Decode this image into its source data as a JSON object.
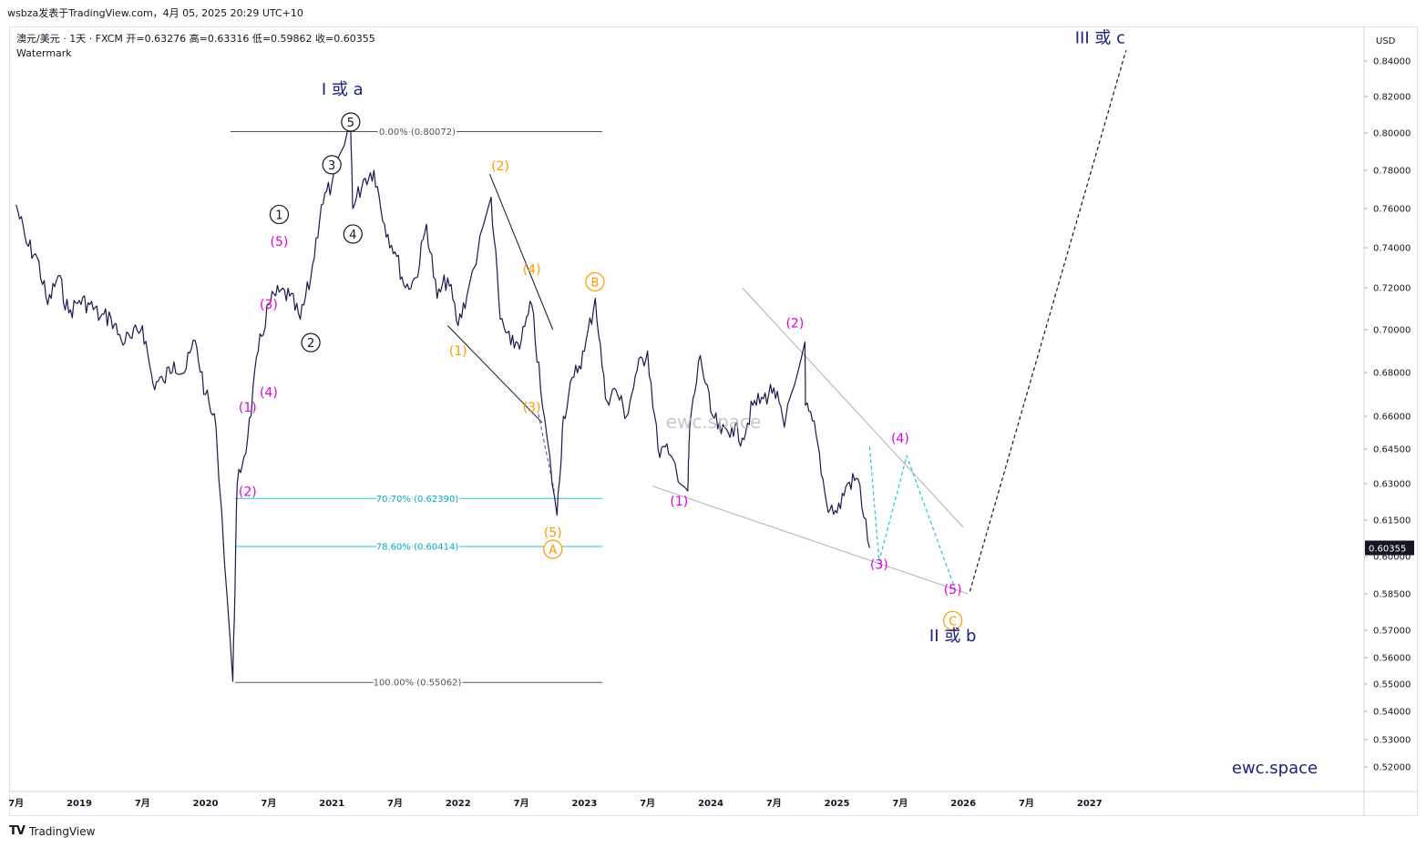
{
  "header": {
    "title": "wsbza发表于TradingView.com，4月 05, 2025 20:29 UTC+10"
  },
  "legend": {
    "line1": "澳元/美元 · 1天 · FXCM  开=0.63276  高=0.63316  低=0.59862  收=0.60355",
    "line2": "Watermark"
  },
  "footer": {
    "logo": "TV",
    "brand": "TradingView"
  },
  "chart_data": {
    "type": "line",
    "title": "澳元/美元 · 1天 · FXCM",
    "currency": "USD",
    "last_price": "0.60355",
    "ohlc": {
      "open": 0.63276,
      "high": 0.63316,
      "low": 0.59862,
      "close": 0.60355
    },
    "y_ticks": [
      "0.84000",
      "0.82000",
      "0.80000",
      "0.78000",
      "0.76000",
      "0.74000",
      "0.72000",
      "0.70000",
      "0.68000",
      "0.66000",
      "0.64500",
      "0.63000",
      "0.61500",
      "0.60000",
      "0.58500",
      "0.57000",
      "0.56000",
      "0.55000",
      "0.54000",
      "0.53000",
      "0.52000"
    ],
    "x_ticks": [
      "7月",
      "2019",
      "7月",
      "2020",
      "7月",
      "2021",
      "7月",
      "2022",
      "7月",
      "2023",
      "7月",
      "2024",
      "7月",
      "2025",
      "7月",
      "2026",
      "7月",
      "2027"
    ],
    "price_series": [
      {
        "x": "2018-07",
        "y": 0.762
      },
      {
        "x": "2018-08",
        "y": 0.742
      },
      {
        "x": "2018-09",
        "y": 0.735
      },
      {
        "x": "2018-10",
        "y": 0.712
      },
      {
        "x": "2018-11",
        "y": 0.726
      },
      {
        "x": "2018-12",
        "y": 0.708
      },
      {
        "x": "2019-01",
        "y": 0.714
      },
      {
        "x": "2019-02",
        "y": 0.712
      },
      {
        "x": "2019-03",
        "y": 0.706
      },
      {
        "x": "2019-04",
        "y": 0.706
      },
      {
        "x": "2019-05",
        "y": 0.695
      },
      {
        "x": "2019-06",
        "y": 0.696
      },
      {
        "x": "2019-07",
        "y": 0.702
      },
      {
        "x": "2019-08",
        "y": 0.675
      },
      {
        "x": "2019-09",
        "y": 0.676
      },
      {
        "x": "2019-10",
        "y": 0.685
      },
      {
        "x": "2019-11",
        "y": 0.68
      },
      {
        "x": "2019-12",
        "y": 0.695
      },
      {
        "x": "2020-01",
        "y": 0.67
      },
      {
        "x": "2020-02",
        "y": 0.655
      },
      {
        "x": "2020-03-19",
        "y": 0.551
      },
      {
        "x": "2020-04",
        "y": 0.63
      },
      {
        "x": "2020-05",
        "y": 0.65
      },
      {
        "x": "2020-06",
        "y": 0.69
      },
      {
        "x": "2020-07",
        "y": 0.712
      },
      {
        "x": "2020-08",
        "y": 0.718
      },
      {
        "x": "2020-09",
        "y": 0.716
      },
      {
        "x": "2020-10",
        "y": 0.705
      },
      {
        "x": "2020-11",
        "y": 0.725
      },
      {
        "x": "2020-12",
        "y": 0.762
      },
      {
        "x": "2021-01",
        "y": 0.773
      },
      {
        "x": "2021-02-25",
        "y": 0.8007
      },
      {
        "x": "2021-03",
        "y": 0.76
      },
      {
        "x": "2021-04",
        "y": 0.775
      },
      {
        "x": "2021-05",
        "y": 0.78
      },
      {
        "x": "2021-06",
        "y": 0.752
      },
      {
        "x": "2021-07",
        "y": 0.738
      },
      {
        "x": "2021-08",
        "y": 0.72
      },
      {
        "x": "2021-09",
        "y": 0.725
      },
      {
        "x": "2021-10",
        "y": 0.752
      },
      {
        "x": "2021-11",
        "y": 0.715
      },
      {
        "x": "2021-12",
        "y": 0.725
      },
      {
        "x": "2022-01",
        "y": 0.702
      },
      {
        "x": "2022-02",
        "y": 0.72
      },
      {
        "x": "2022-04-05",
        "y": 0.766
      },
      {
        "x": "2022-05",
        "y": 0.705
      },
      {
        "x": "2022-06",
        "y": 0.693
      },
      {
        "x": "2022-07",
        "y": 0.695
      },
      {
        "x": "2022-08",
        "y": 0.712
      },
      {
        "x": "2022-09",
        "y": 0.665
      },
      {
        "x": "2022-10-13",
        "y": 0.617
      },
      {
        "x": "2022-11",
        "y": 0.66
      },
      {
        "x": "2022-12",
        "y": 0.678
      },
      {
        "x": "2023-01",
        "y": 0.69
      },
      {
        "x": "2023-02-02",
        "y": 0.715
      },
      {
        "x": "2023-03",
        "y": 0.668
      },
      {
        "x": "2023-04",
        "y": 0.672
      },
      {
        "x": "2023-05",
        "y": 0.66
      },
      {
        "x": "2023-06",
        "y": 0.681
      },
      {
        "x": "2023-07",
        "y": 0.69
      },
      {
        "x": "2023-08",
        "y": 0.645
      },
      {
        "x": "2023-09",
        "y": 0.643
      },
      {
        "x": "2023-10-26",
        "y": 0.627
      },
      {
        "x": "2023-11",
        "y": 0.655
      },
      {
        "x": "2023-12",
        "y": 0.688
      },
      {
        "x": "2024-01",
        "y": 0.662
      },
      {
        "x": "2024-02",
        "y": 0.652
      },
      {
        "x": "2024-03",
        "y": 0.655
      },
      {
        "x": "2024-04",
        "y": 0.65
      },
      {
        "x": "2024-05",
        "y": 0.665
      },
      {
        "x": "2024-06",
        "y": 0.668
      },
      {
        "x": "2024-07",
        "y": 0.673
      },
      {
        "x": "2024-08",
        "y": 0.655
      },
      {
        "x": "2024-09-30",
        "y": 0.6942
      },
      {
        "x": "2024-10",
        "y": 0.665
      },
      {
        "x": "2024-11",
        "y": 0.652
      },
      {
        "x": "2024-12",
        "y": 0.622
      },
      {
        "x": "2025-01",
        "y": 0.618
      },
      {
        "x": "2025-02",
        "y": 0.63
      },
      {
        "x": "2025-03",
        "y": 0.632
      },
      {
        "x": "2025-04-04",
        "y": 0.60355
      }
    ],
    "fib_levels": [
      {
        "label": "0.00% (0.80072)",
        "value": 0.80072
      },
      {
        "label": "70.70% (0.62390)",
        "value": 0.6239
      },
      {
        "label": "78.60% (0.60414)",
        "value": 0.60414
      },
      {
        "label": "100.00% (0.55062)",
        "value": 0.55062
      }
    ],
    "annotations": {
      "black_circled": [
        {
          "text": "1",
          "x": "2020-08",
          "y": 0.757
        },
        {
          "text": "2",
          "x": "2020-11",
          "y": 0.694
        },
        {
          "text": "3",
          "x": "2021-01",
          "y": 0.783
        },
        {
          "text": "4",
          "x": "2021-03",
          "y": 0.747
        },
        {
          "text": "5",
          "x": "2021-02-25",
          "y": 0.806
        }
      ],
      "magenta": [
        {
          "text": "(1)",
          "x": "2020-05",
          "y": 0.662
        },
        {
          "text": "(2)",
          "x": "2020-05",
          "y": 0.625
        },
        {
          "text": "(3)",
          "x": "2020-07",
          "y": 0.71
        },
        {
          "text": "(4)",
          "x": "2020-07",
          "y": 0.669
        },
        {
          "text": "(5)",
          "x": "2020-08",
          "y": 0.741
        },
        {
          "text": "(1)",
          "x": "2023-10",
          "y": 0.621
        },
        {
          "text": "(2)",
          "x": "2024-09",
          "y": 0.701
        },
        {
          "text": "(3)",
          "x": "2025-05",
          "y": 0.595
        },
        {
          "text": "(4)",
          "x": "2025-07",
          "y": 0.648
        },
        {
          "text": "(5)",
          "x": "2025-12",
          "y": 0.585
        }
      ],
      "orange": [
        {
          "text": "(1)",
          "x": "2022-01",
          "y": 0.688
        },
        {
          "text": "(2)",
          "x": "2022-05",
          "y": 0.78
        },
        {
          "text": "(3)",
          "x": "2022-08",
          "y": 0.662
        },
        {
          "text": "(4)",
          "x": "2022-08",
          "y": 0.727
        },
        {
          "text": "(5)",
          "x": "2022-10",
          "y": 0.608
        },
        {
          "text": "A",
          "x": "2022-10",
          "y": 0.603
        },
        {
          "text": "B",
          "x": "2023-02",
          "y": 0.723
        },
        {
          "text": "C",
          "x": "2025-12",
          "y": 0.574
        }
      ],
      "wave_labels": [
        {
          "text": "I 或 a",
          "x": "2021-02",
          "y": 0.821
        },
        {
          "text": "II 或 b",
          "x": "2025-12",
          "y": 0.566
        },
        {
          "text": "III 或 c",
          "x": "2027-02",
          "y": 0.85
        }
      ]
    },
    "watermark_center": "ewc.space",
    "watermark_corner": "ewc.space"
  }
}
